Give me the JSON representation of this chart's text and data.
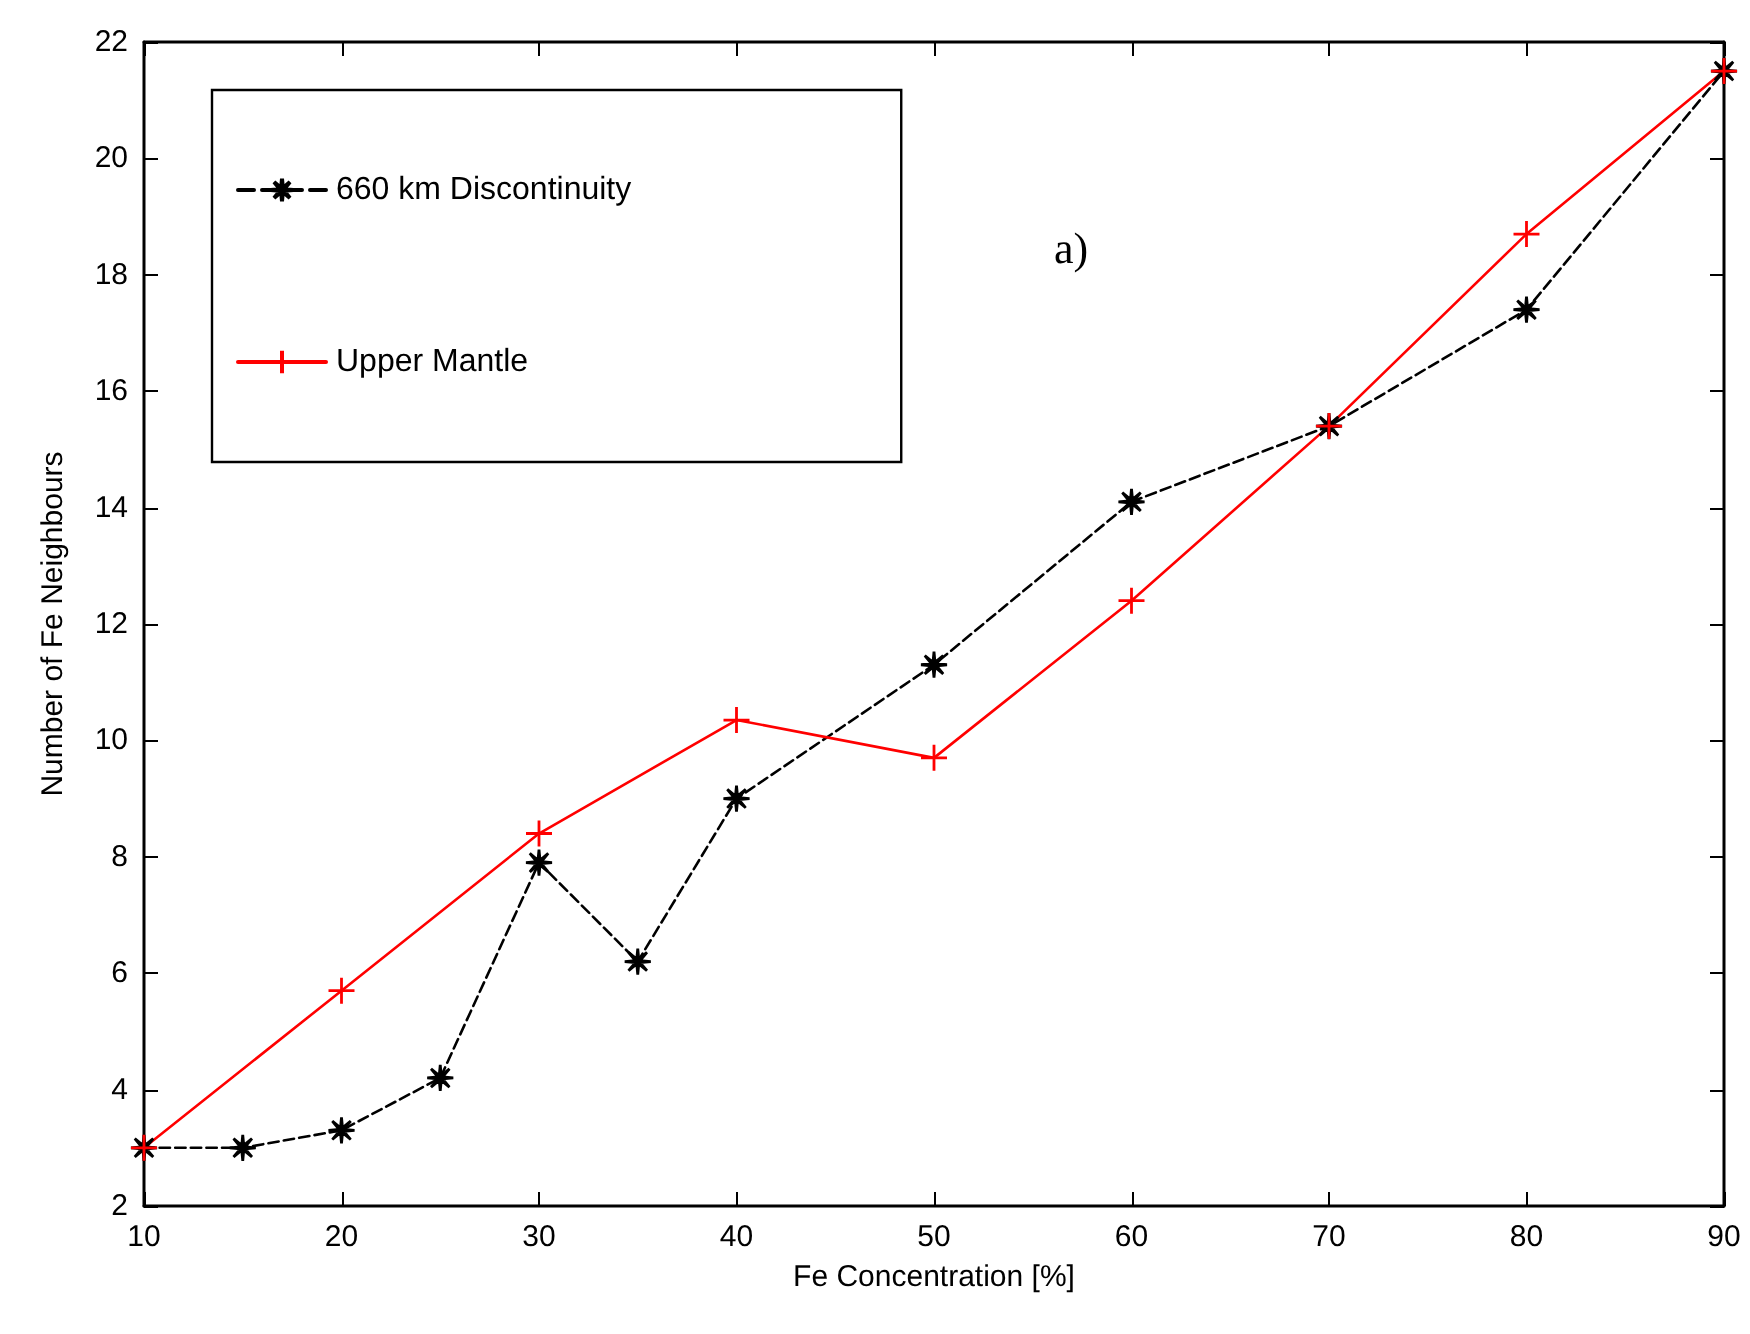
{
  "chart_data": {
    "type": "line",
    "xlabel": "Fe Concentration [%]",
    "ylabel": "Number of Fe Neighbours",
    "annotations": [
      "a)"
    ],
    "xlim": [
      10,
      90
    ],
    "xticks": [
      10,
      20,
      30,
      40,
      50,
      60,
      70,
      80,
      90
    ],
    "ylim": [
      2,
      22
    ],
    "yticks": [
      2,
      4,
      6,
      8,
      10,
      12,
      14,
      16,
      18,
      20,
      22
    ],
    "grid": false,
    "legend": "top left",
    "series": [
      {
        "name": "660 km Discontinuity",
        "color": "#000000",
        "marker": "star",
        "line_style": "dashed",
        "x": [
          10,
          15,
          20,
          25,
          30,
          35,
          40,
          50,
          60,
          70,
          80,
          90
        ],
        "values": [
          3.0,
          3.0,
          3.3,
          4.2,
          7.9,
          6.2,
          9.0,
          11.3,
          14.1,
          15.4,
          17.4,
          21.5
        ]
      },
      {
        "name": "Upper Mantle",
        "color": "#ff0000",
        "marker": "cross",
        "line_style": "solid",
        "x": [
          10,
          20,
          30,
          40,
          50,
          60,
          70,
          80,
          90
        ],
        "values": [
          3.0,
          5.7,
          8.4,
          10.35,
          9.7,
          12.4,
          15.4,
          18.7,
          21.5
        ]
      }
    ]
  }
}
